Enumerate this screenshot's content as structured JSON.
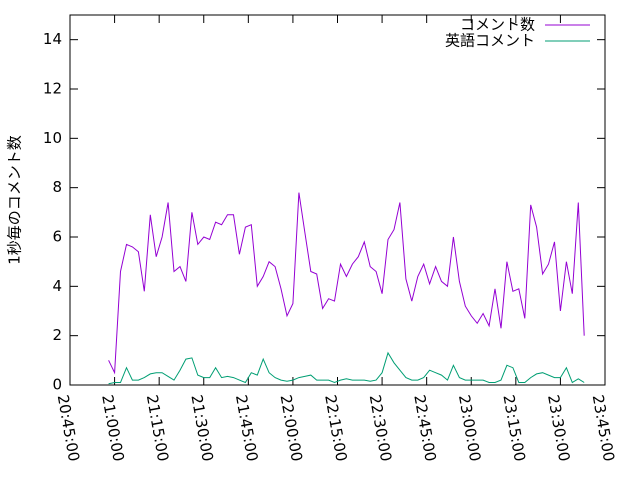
{
  "chart_data": {
    "type": "line",
    "ylabel": "1秒毎のコメント数",
    "x": [
      "20:58:00",
      "21:00:00",
      "21:02:00",
      "21:04:00",
      "21:06:00",
      "21:08:00",
      "21:10:00",
      "21:12:00",
      "21:14:00",
      "21:16:00",
      "21:18:00",
      "21:20:00",
      "21:22:00",
      "21:24:00",
      "21:26:00",
      "21:28:00",
      "21:30:00",
      "21:32:00",
      "21:34:00",
      "21:36:00",
      "21:38:00",
      "21:40:00",
      "21:42:00",
      "21:44:00",
      "21:46:00",
      "21:48:00",
      "21:50:00",
      "21:52:00",
      "21:54:00",
      "21:56:00",
      "21:58:00",
      "22:00:00",
      "22:02:00",
      "22:04:00",
      "22:06:00",
      "22:08:00",
      "22:10:00",
      "22:12:00",
      "22:14:00",
      "22:16:00",
      "22:18:00",
      "22:20:00",
      "22:22:00",
      "22:24:00",
      "22:26:00",
      "22:28:00",
      "22:30:00",
      "22:32:00",
      "22:34:00",
      "22:36:00",
      "22:38:00",
      "22:40:00",
      "22:42:00",
      "22:44:00",
      "22:46:00",
      "22:48:00",
      "22:50:00",
      "22:52:00",
      "22:54:00",
      "22:56:00",
      "22:58:00",
      "23:00:00",
      "23:02:00",
      "23:04:00",
      "23:06:00",
      "23:08:00",
      "23:10:00",
      "23:12:00",
      "23:14:00",
      "23:16:00",
      "23:18:00",
      "23:20:00",
      "23:22:00",
      "23:24:00",
      "23:26:00",
      "23:28:00",
      "23:30:00",
      "23:32:00",
      "23:34:00",
      "23:36:00",
      "23:38:00"
    ],
    "series": [
      {
        "name": "コメント数",
        "color": "#9400d3",
        "values": [
          1.0,
          0.5,
          4.6,
          5.7,
          5.6,
          5.4,
          3.8,
          6.9,
          5.2,
          6.0,
          7.4,
          4.6,
          4.8,
          4.2,
          7.0,
          5.7,
          6.0,
          5.9,
          6.6,
          6.5,
          6.9,
          6.9,
          5.3,
          6.4,
          6.5,
          4.0,
          4.4,
          5.0,
          4.8,
          3.9,
          2.8,
          3.3,
          7.8,
          6.2,
          4.6,
          4.5,
          3.1,
          3.5,
          3.4,
          4.9,
          4.4,
          4.9,
          5.2,
          5.8,
          4.8,
          4.6,
          3.7,
          5.9,
          6.3,
          7.4,
          4.3,
          3.4,
          4.4,
          4.9,
          4.1,
          4.8,
          4.2,
          4.0,
          6.0,
          4.2,
          3.2,
          2.8,
          2.5,
          2.9,
          2.4,
          3.9,
          2.3,
          5.0,
          3.8,
          3.9,
          2.7,
          7.3,
          6.4,
          4.5,
          4.9,
          5.8,
          3.0,
          5.0,
          3.7,
          7.4,
          2.0
        ]
      },
      {
        "name": "英語コメント",
        "color": "#009e73",
        "values": [
          0.05,
          0.1,
          0.1,
          0.7,
          0.2,
          0.2,
          0.3,
          0.45,
          0.5,
          0.5,
          0.35,
          0.2,
          0.6,
          1.05,
          1.1,
          0.4,
          0.3,
          0.3,
          0.7,
          0.3,
          0.35,
          0.3,
          0.2,
          0.1,
          0.5,
          0.4,
          1.05,
          0.5,
          0.3,
          0.2,
          0.15,
          0.2,
          0.3,
          0.35,
          0.4,
          0.2,
          0.2,
          0.2,
          0.1,
          0.2,
          0.25,
          0.2,
          0.2,
          0.2,
          0.15,
          0.2,
          0.5,
          1.3,
          0.9,
          0.6,
          0.3,
          0.2,
          0.2,
          0.3,
          0.6,
          0.5,
          0.4,
          0.2,
          0.8,
          0.3,
          0.2,
          0.2,
          0.2,
          0.2,
          0.1,
          0.1,
          0.2,
          0.8,
          0.7,
          0.1,
          0.1,
          0.3,
          0.45,
          0.5,
          0.4,
          0.3,
          0.3,
          0.7,
          0.1,
          0.25,
          0.1
        ]
      }
    ],
    "xlim": [
      "20:45:00",
      "23:45:00"
    ],
    "xticks": [
      "20:45:00",
      "21:00:00",
      "21:15:00",
      "21:30:00",
      "21:45:00",
      "22:00:00",
      "22:15:00",
      "22:30:00",
      "22:45:00",
      "23:00:00",
      "23:15:00",
      "23:30:00",
      "23:45:00"
    ],
    "ylim": [
      0,
      15
    ],
    "yticks": [
      0,
      2,
      4,
      6,
      8,
      10,
      12,
      14
    ],
    "legend": "top-right"
  }
}
